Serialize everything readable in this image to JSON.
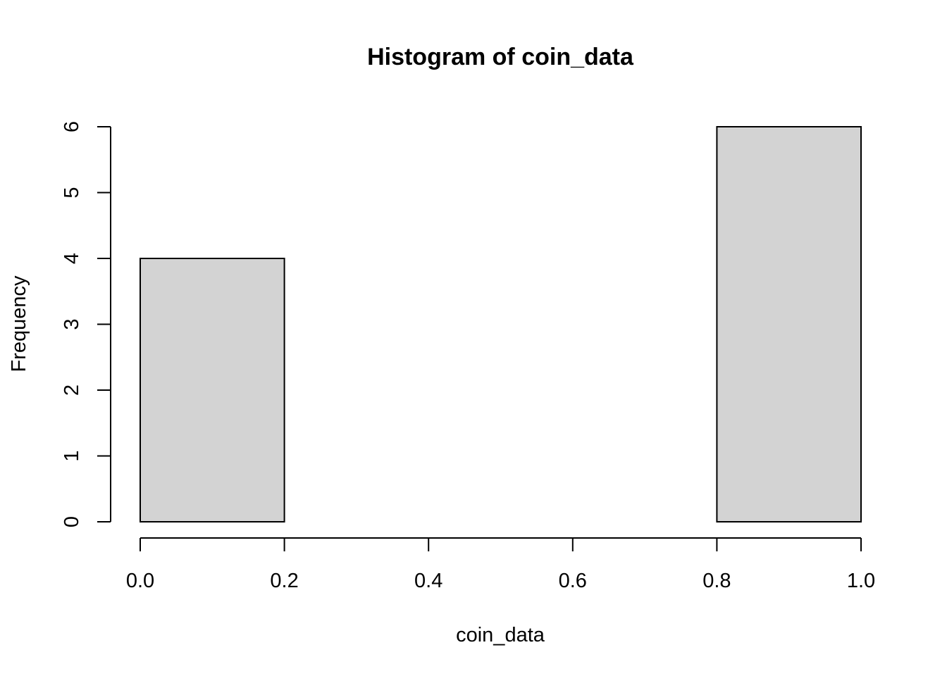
{
  "chart_data": {
    "type": "bar",
    "title": "Histogram of coin_data",
    "xlabel": "coin_data",
    "ylabel": "Frequency",
    "bins": [
      {
        "start": 0.0,
        "end": 0.2,
        "count": 4
      },
      {
        "start": 0.2,
        "end": 0.4,
        "count": 0
      },
      {
        "start": 0.4,
        "end": 0.6,
        "count": 0
      },
      {
        "start": 0.6,
        "end": 0.8,
        "count": 0
      },
      {
        "start": 0.8,
        "end": 1.0,
        "count": 6
      }
    ],
    "xlim": [
      0.0,
      1.0
    ],
    "ylim": [
      0,
      6
    ],
    "x_ticks": [
      0.0,
      0.2,
      0.4,
      0.6,
      0.8,
      1.0
    ],
    "x_tick_labels": [
      "0.0",
      "0.2",
      "0.4",
      "0.6",
      "0.8",
      "1.0"
    ],
    "y_ticks": [
      0,
      1,
      2,
      3,
      4,
      5,
      6
    ],
    "y_tick_labels": [
      "0",
      "1",
      "2",
      "3",
      "4",
      "5",
      "6"
    ],
    "grid": false,
    "bar_fill": "#d3d3d3",
    "bar_stroke": "#000000"
  }
}
